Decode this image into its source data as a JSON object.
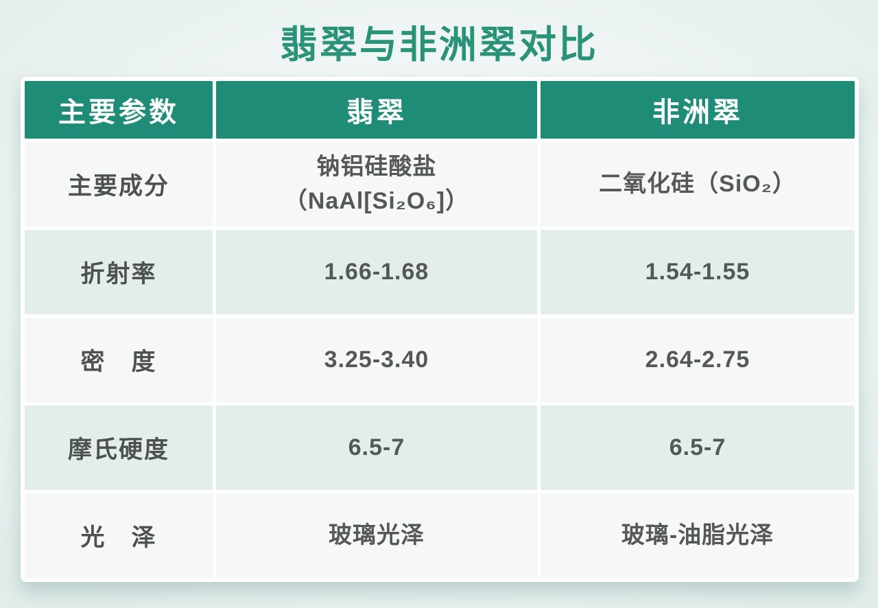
{
  "page": {
    "title": "翡翠与非洲翠对比"
  },
  "colors": {
    "title_green": "#2a9278",
    "header_green": "#1e8c76",
    "row_light": "#f6f7f7",
    "row_mint": "#e3eeeb",
    "text_dark": "#4d5150",
    "background_mint": "#e2edeb"
  },
  "table": {
    "headers": [
      "主要参数",
      "翡翠",
      "非洲翠"
    ],
    "rows": [
      {
        "param": "主要成分",
        "jade": "钠铝硅酸盐\n（NaAl[Si₂O₆]）",
        "african": "二氧化硅（SiO₂）"
      },
      {
        "param": "折射率",
        "jade": "1.66-1.68",
        "african": "1.54-1.55"
      },
      {
        "param": "密　度",
        "jade": "3.25-3.40",
        "african": "2.64-2.75"
      },
      {
        "param": "摩氏硬度",
        "jade": "6.5-7",
        "african": "6.5-7"
      },
      {
        "param": "光　泽",
        "jade": "玻璃光泽",
        "african": "玻璃-油脂光泽"
      }
    ]
  },
  "chart_data": {
    "type": "table",
    "title": "翡翠与非洲翠对比",
    "columns": [
      "主要参数",
      "翡翠",
      "非洲翠"
    ],
    "rows": [
      [
        "主要成分",
        "钠铝硅酸盐（NaAl[Si₂O₆]）",
        "二氧化硅（SiO₂）"
      ],
      [
        "折射率",
        "1.66-1.68",
        "1.54-1.55"
      ],
      [
        "密度",
        "3.25-3.40",
        "2.64-2.75"
      ],
      [
        "摩氏硬度",
        "6.5-7",
        "6.5-7"
      ],
      [
        "光泽",
        "玻璃光泽",
        "玻璃-油脂光泽"
      ]
    ],
    "layout": {
      "header_background": "#1e8c76",
      "alternating_rows": true,
      "legend_position": "none",
      "grid": "white-gaps"
    }
  }
}
